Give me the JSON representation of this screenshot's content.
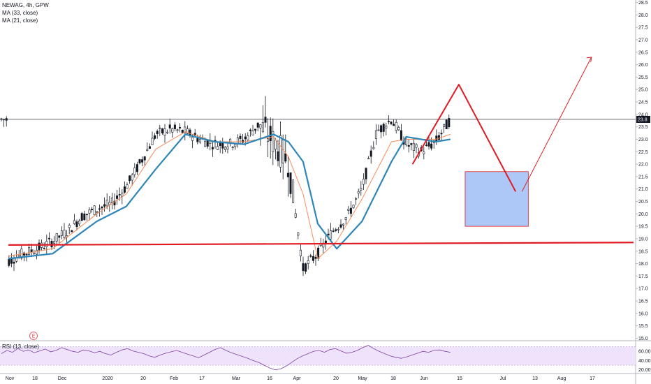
{
  "legend": {
    "symbol": "NEWAG, 4h, GPW",
    "ma33": "MA (33, close)",
    "ma21": "MA (21, close)"
  },
  "rsi_legend": "RSI (13, close)",
  "last_price_label": "23.8",
  "event_marker": "E",
  "colors": {
    "up_candle": "#ffffff",
    "down_candle": "#131722",
    "ma33": "#2e86b8",
    "ma21": "#f48c5a",
    "drawing_red": "#e01b24",
    "box_fill": "#a9c4f5",
    "box_stroke": "#e01b24",
    "rsi_line": "#7b3fa0",
    "rsi_band": "#efe3fb"
  },
  "chart_data": {
    "type": "line",
    "title": "NEWAG, 4h, GPW",
    "price_ticks": [
      "28.5",
      "28.0",
      "27.5",
      "27.0",
      "26.5",
      "26.0",
      "25.5",
      "25.0",
      "24.5",
      "24.0",
      "23.5",
      "23.0",
      "22.5",
      "22.0",
      "21.5",
      "21.0",
      "20.5",
      "20.0",
      "19.5",
      "19.0",
      "18.5",
      "18.0",
      "17.5",
      "17.0",
      "16.5",
      "16.0",
      "15.5",
      "15.0"
    ],
    "ylim": [
      14.9,
      28.6
    ],
    "x_ticks": [
      "Nov",
      "18",
      "Dec",
      "2020",
      "20",
      "Feb",
      "17",
      "Mar",
      "16",
      "Apr",
      "20",
      "May",
      "18",
      "Jun",
      "15",
      "Jul",
      "13",
      "Aug",
      "17"
    ],
    "last_price": 23.8,
    "price_path": [
      {
        "date": "2019-10-28",
        "price": 18.1
      },
      {
        "date": "2019-11-04",
        "price": 18.4
      },
      {
        "date": "2019-11-11",
        "price": 18.6
      },
      {
        "date": "2019-11-18",
        "price": 18.9
      },
      {
        "date": "2019-11-25",
        "price": 19.3
      },
      {
        "date": "2019-12-02",
        "price": 19.9
      },
      {
        "date": "2019-12-09",
        "price": 20.2
      },
      {
        "date": "2019-12-16",
        "price": 20.4
      },
      {
        "date": "2019-12-23",
        "price": 21.1
      },
      {
        "date": "2019-12-30",
        "price": 22.1
      },
      {
        "date": "2020-01-06",
        "price": 23.2
      },
      {
        "date": "2020-01-13",
        "price": 23.4
      },
      {
        "date": "2020-01-20",
        "price": 23.3
      },
      {
        "date": "2020-01-27",
        "price": 23.0
      },
      {
        "date": "2020-02-03",
        "price": 22.8
      },
      {
        "date": "2020-02-10",
        "price": 22.8
      },
      {
        "date": "2020-02-17",
        "price": 23.0
      },
      {
        "date": "2020-02-24",
        "price": 23.6
      },
      {
        "date": "2020-03-02",
        "price": 22.9
      },
      {
        "date": "2020-03-09",
        "price": 22.1
      },
      {
        "date": "2020-03-16",
        "price": 17.8
      },
      {
        "date": "2020-03-23",
        "price": 18.4
      },
      {
        "date": "2020-03-30",
        "price": 19.3
      },
      {
        "date": "2020-04-06",
        "price": 19.9
      },
      {
        "date": "2020-04-13",
        "price": 21.0
      },
      {
        "date": "2020-04-20",
        "price": 23.3
      },
      {
        "date": "2020-04-27",
        "price": 23.8
      },
      {
        "date": "2020-05-04",
        "price": 22.8
      },
      {
        "date": "2020-05-11",
        "price": 22.5
      },
      {
        "date": "2020-05-18",
        "price": 22.9
      },
      {
        "date": "2020-05-25",
        "price": 23.8
      }
    ],
    "ma33": [
      {
        "date": "2019-10-28",
        "price": 18.2
      },
      {
        "date": "2019-11-18",
        "price": 18.4
      },
      {
        "date": "2019-12-09",
        "price": 19.7
      },
      {
        "date": "2019-12-23",
        "price": 20.3
      },
      {
        "date": "2020-01-06",
        "price": 21.8
      },
      {
        "date": "2020-01-20",
        "price": 23.2
      },
      {
        "date": "2020-02-03",
        "price": 22.9
      },
      {
        "date": "2020-02-17",
        "price": 22.8
      },
      {
        "date": "2020-03-02",
        "price": 23.2
      },
      {
        "date": "2020-03-09",
        "price": 22.9
      },
      {
        "date": "2020-03-16",
        "price": 22.1
      },
      {
        "date": "2020-03-23",
        "price": 19.6
      },
      {
        "date": "2020-04-01",
        "price": 18.6
      },
      {
        "date": "2020-04-13",
        "price": 19.7
      },
      {
        "date": "2020-04-27",
        "price": 22.1
      },
      {
        "date": "2020-05-04",
        "price": 23.1
      },
      {
        "date": "2020-05-18",
        "price": 22.9
      },
      {
        "date": "2020-05-25",
        "price": 23.0
      }
    ],
    "ma21": [
      {
        "date": "2019-10-28",
        "price": 18.3
      },
      {
        "date": "2019-11-18",
        "price": 18.6
      },
      {
        "date": "2019-12-09",
        "price": 20.0
      },
      {
        "date": "2019-12-23",
        "price": 20.8
      },
      {
        "date": "2020-01-06",
        "price": 22.6
      },
      {
        "date": "2020-01-20",
        "price": 23.3
      },
      {
        "date": "2020-02-03",
        "price": 22.9
      },
      {
        "date": "2020-02-17",
        "price": 22.9
      },
      {
        "date": "2020-03-02",
        "price": 23.1
      },
      {
        "date": "2020-03-09",
        "price": 22.3
      },
      {
        "date": "2020-03-16",
        "price": 20.8
      },
      {
        "date": "2020-03-23",
        "price": 18.2
      },
      {
        "date": "2020-04-01",
        "price": 18.9
      },
      {
        "date": "2020-04-13",
        "price": 20.6
      },
      {
        "date": "2020-04-27",
        "price": 22.9
      },
      {
        "date": "2020-05-04",
        "price": 23.0
      },
      {
        "date": "2020-05-18",
        "price": 23.0
      },
      {
        "date": "2020-05-25",
        "price": 23.2
      }
    ],
    "support_line": [
      {
        "date": "2019-10-28",
        "price": 18.75
      },
      {
        "date": "2020-08-20",
        "price": 18.85
      }
    ],
    "projection": [
      {
        "date": "2020-05-07",
        "price": 22.0
      },
      {
        "date": "2020-05-29",
        "price": 25.2
      },
      {
        "date": "2020-06-25",
        "price": 20.9
      }
    ],
    "projection_up": [
      {
        "date": "2020-06-28",
        "price": 20.9
      },
      {
        "date": "2020-07-31",
        "price": 26.3
      }
    ],
    "target_box": {
      "from": "2020-06-01",
      "to": "2020-07-01",
      "low": 19.5,
      "high": 21.7
    },
    "rsi": {
      "ticks": [
        "60.00",
        "40.00",
        "20.00"
      ],
      "ylim": [
        15,
        80
      ],
      "upper": 70,
      "lower": 30,
      "values": [
        55,
        62,
        58,
        66,
        60,
        63,
        57,
        61,
        65,
        59,
        62,
        68,
        64,
        60,
        58,
        63,
        61,
        57,
        60,
        55,
        52,
        58,
        63,
        66,
        61,
        58,
        55,
        50,
        47,
        52,
        56,
        59,
        62,
        58,
        54,
        50,
        46,
        52,
        58,
        64,
        68,
        62,
        57,
        53,
        49,
        45,
        40,
        36,
        30,
        24,
        20,
        22,
        28,
        36,
        44,
        50,
        55,
        60,
        62,
        58,
        64,
        66,
        61,
        56,
        58,
        62,
        68,
        73,
        66,
        60,
        55,
        50,
        47,
        45,
        48,
        52,
        56,
        60,
        58,
        62,
        63,
        60,
        58
      ]
    }
  }
}
